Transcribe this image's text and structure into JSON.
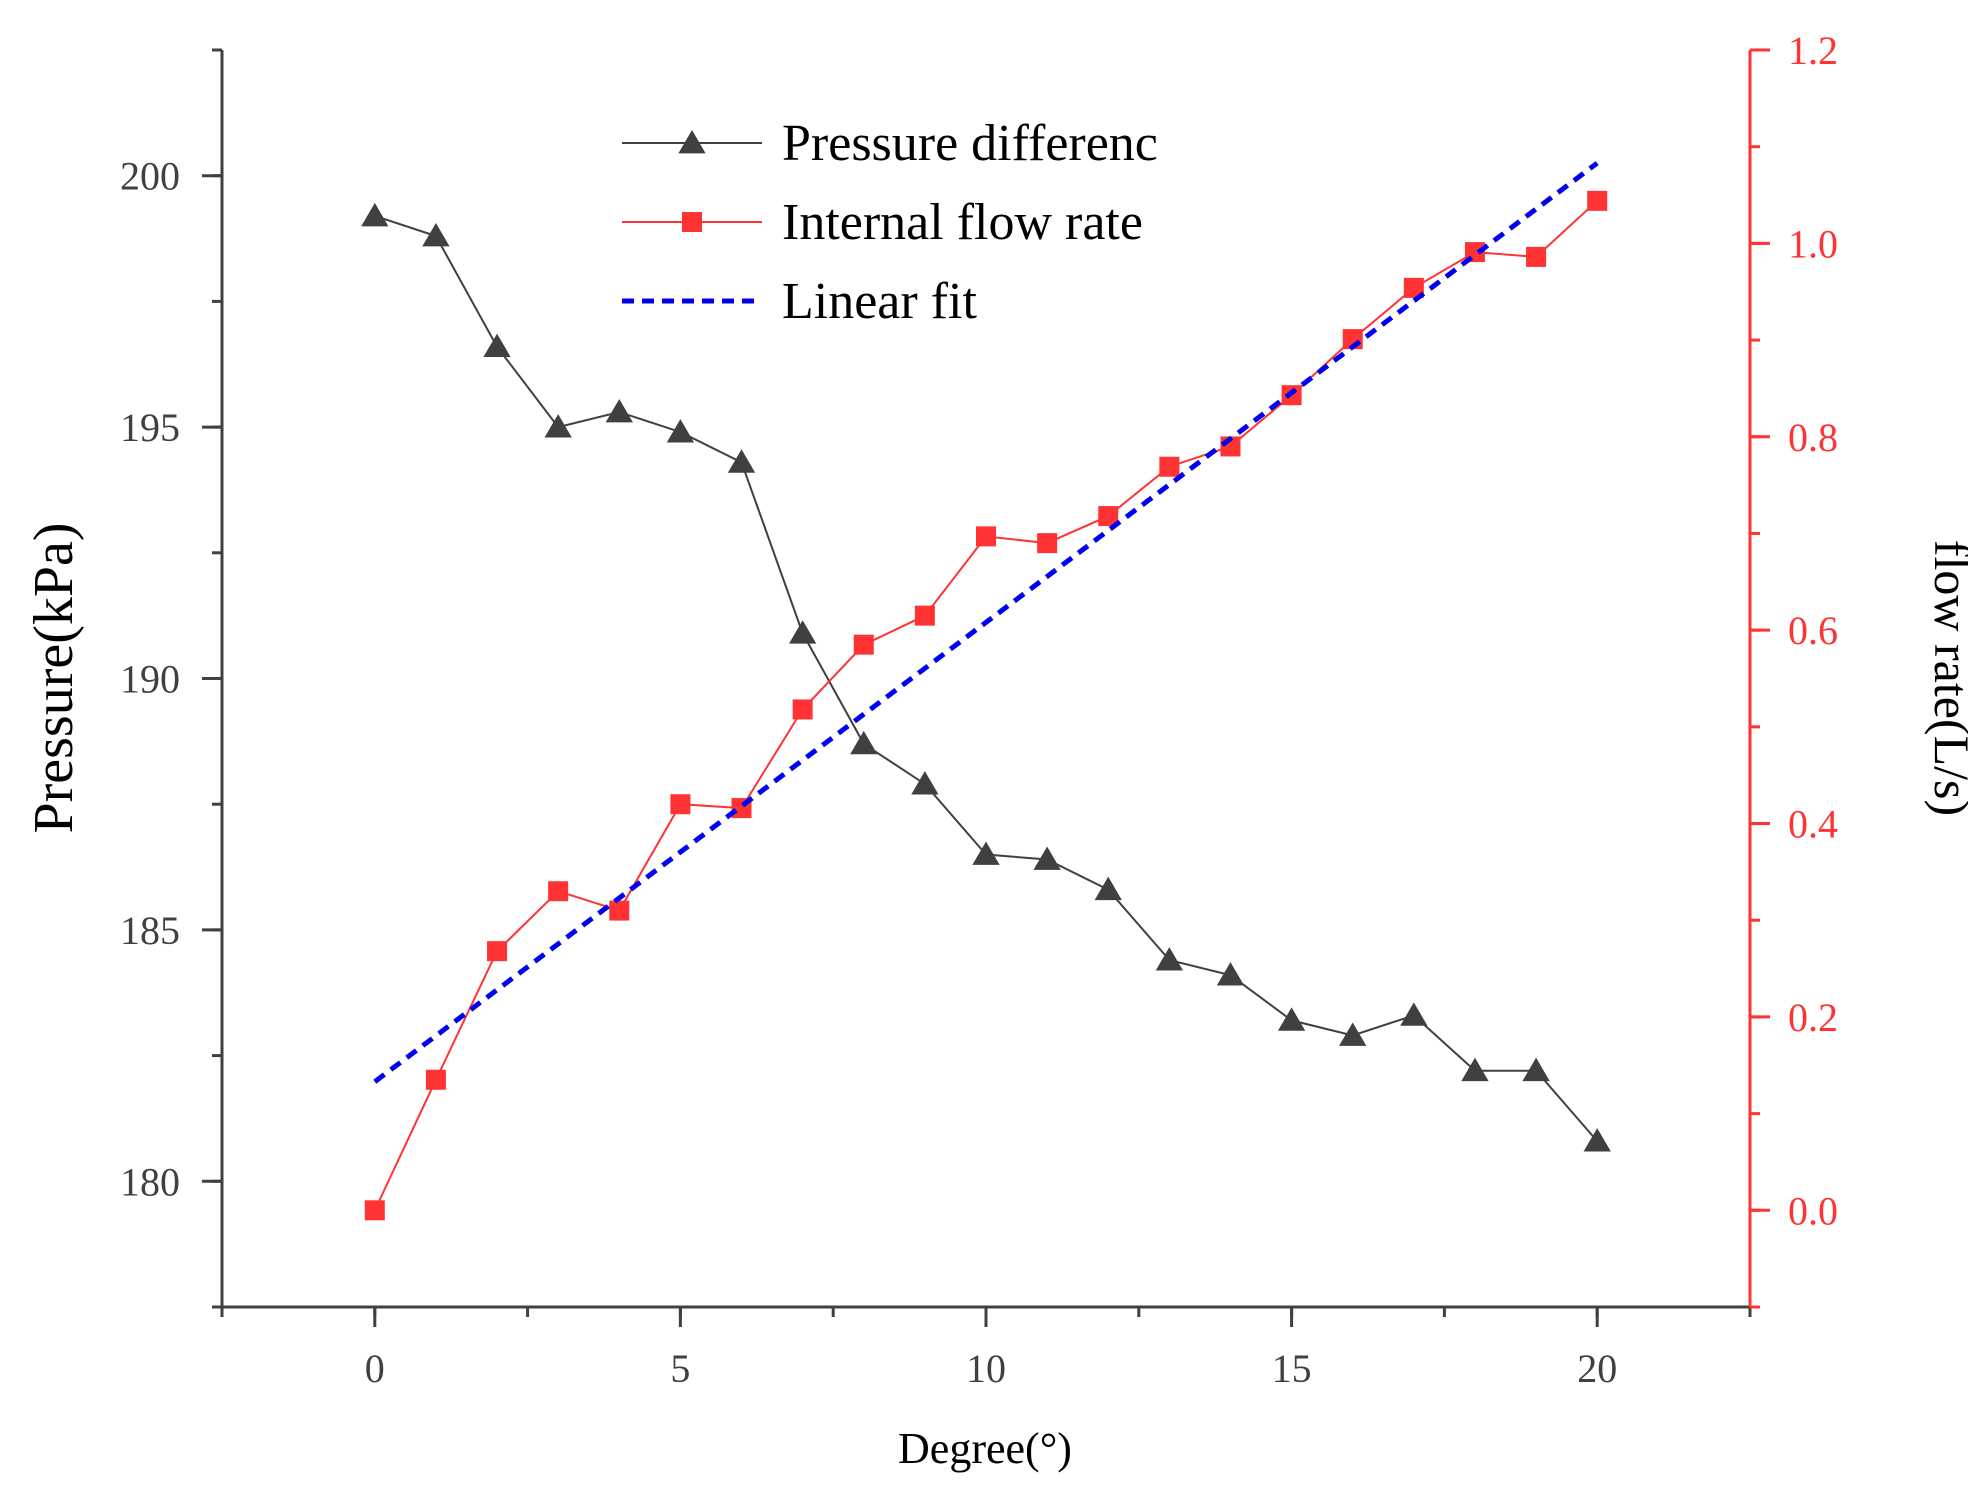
{
  "chart_data": {
    "type": "line",
    "title": "",
    "xlabel": "Degree(°)",
    "ylabel": "Pressure(kPa)",
    "y2label": "flow rate(L/s)",
    "xlim": [
      -2.5,
      22.5
    ],
    "ylim": [
      177.5,
      202.5
    ],
    "y2lim": [
      -0.1,
      1.2
    ],
    "xticks": [
      0,
      5,
      10,
      15,
      20
    ],
    "xtick_labels": [
      "0",
      "5",
      "10",
      "15",
      "20"
    ],
    "yticks": [
      180,
      185,
      190,
      195,
      200
    ],
    "ytick_labels": [
      "180",
      "185",
      "190",
      "195",
      "200"
    ],
    "y2ticks": [
      0.0,
      0.2,
      0.4,
      0.6,
      0.8,
      1.0,
      1.2
    ],
    "y2tick_labels": [
      "0.0",
      "0.2",
      "0.4",
      "0.6",
      "0.8",
      "1.0",
      "1.2"
    ],
    "legend_position": "top-center",
    "grid": false,
    "x": [
      0,
      1,
      2,
      3,
      4,
      5,
      6,
      7,
      8,
      9,
      10,
      11,
      12,
      13,
      14,
      15,
      16,
      17,
      18,
      19,
      20
    ],
    "series": [
      {
        "name": "Pressure differenc",
        "axis": "left",
        "marker": "triangle",
        "color": "#404040",
        "values": [
          199.2,
          198.8,
          196.6,
          195.0,
          195.3,
          194.9,
          194.3,
          190.9,
          188.7,
          187.9,
          186.5,
          186.4,
          185.8,
          184.4,
          184.1,
          183.2,
          182.9,
          183.3,
          182.2,
          182.2,
          180.8
        ]
      },
      {
        "name": "Internal flow rate",
        "axis": "right",
        "marker": "square",
        "color": "#ff3333",
        "values": [
          0.0,
          0.135,
          0.268,
          0.33,
          0.31,
          0.42,
          0.416,
          0.518,
          0.585,
          0.615,
          0.697,
          0.69,
          0.718,
          0.769,
          0.79,
          0.843,
          0.901,
          0.954,
          0.991,
          0.986,
          1.044
        ]
      },
      {
        "name": "Linear fit",
        "axis": "right",
        "style": "dashed",
        "color": "#0000ee",
        "x": [
          0,
          20
        ],
        "values": [
          0.133,
          1.083
        ]
      }
    ]
  }
}
